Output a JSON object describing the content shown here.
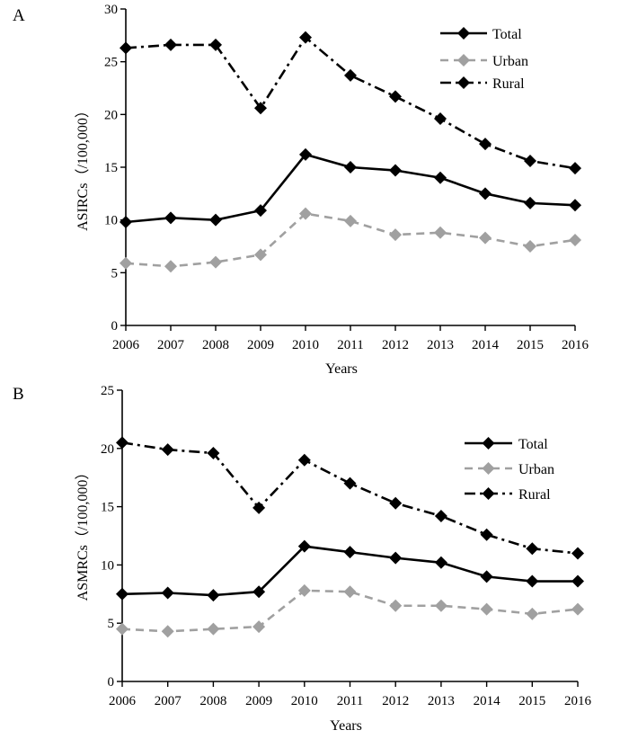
{
  "chart_data": [
    {
      "type": "line",
      "panel_label": "A",
      "title": "",
      "xlabel": "Years",
      "ylabel": "ASIRCs（/100,000）",
      "categories": [
        "2006",
        "2007",
        "2008",
        "2009",
        "2010",
        "2011",
        "2012",
        "2013",
        "2014",
        "2015",
        "2016"
      ],
      "ylim": [
        0,
        30
      ],
      "yticks": [
        0,
        5,
        10,
        15,
        20,
        25,
        30
      ],
      "legend_position": "top-right",
      "series": [
        {
          "name": "Total",
          "color": "#000000",
          "dash": "solid",
          "values": [
            9.8,
            10.2,
            10.0,
            10.9,
            16.2,
            15.0,
            14.7,
            14.0,
            12.5,
            11.6,
            11.4
          ]
        },
        {
          "name": "Urban",
          "color": "#a0a0a0",
          "dash": "dashed",
          "values": [
            5.9,
            5.6,
            6.0,
            6.7,
            10.6,
            9.9,
            8.6,
            8.8,
            8.3,
            7.5,
            8.1
          ]
        },
        {
          "name": "Rural",
          "color": "#000000",
          "dash": "dashdot",
          "values": [
            26.3,
            26.6,
            26.6,
            20.6,
            27.3,
            23.7,
            21.7,
            19.6,
            17.2,
            15.6,
            14.9
          ]
        }
      ]
    },
    {
      "type": "line",
      "panel_label": "B",
      "title": "",
      "xlabel": "Years",
      "ylabel": "ASMRCs（/100,000）",
      "categories": [
        "2006",
        "2007",
        "2008",
        "2009",
        "2010",
        "2011",
        "2012",
        "2013",
        "2014",
        "2015",
        "2016"
      ],
      "ylim": [
        0,
        25
      ],
      "yticks": [
        0,
        5,
        10,
        15,
        20,
        25
      ],
      "legend_position": "top-right",
      "series": [
        {
          "name": "Total",
          "color": "#000000",
          "dash": "solid",
          "values": [
            7.5,
            7.6,
            7.4,
            7.7,
            11.6,
            11.1,
            10.6,
            10.2,
            9.0,
            8.6,
            8.6
          ]
        },
        {
          "name": "Urban",
          "color": "#a0a0a0",
          "dash": "dashed",
          "values": [
            4.5,
            4.3,
            4.5,
            4.7,
            7.8,
            7.7,
            6.5,
            6.5,
            6.2,
            5.8,
            6.2
          ]
        },
        {
          "name": "Rural",
          "color": "#000000",
          "dash": "dashdot",
          "values": [
            20.5,
            19.9,
            19.6,
            14.9,
            19.0,
            17.0,
            15.3,
            14.2,
            12.6,
            11.4,
            11.0
          ]
        }
      ]
    }
  ]
}
